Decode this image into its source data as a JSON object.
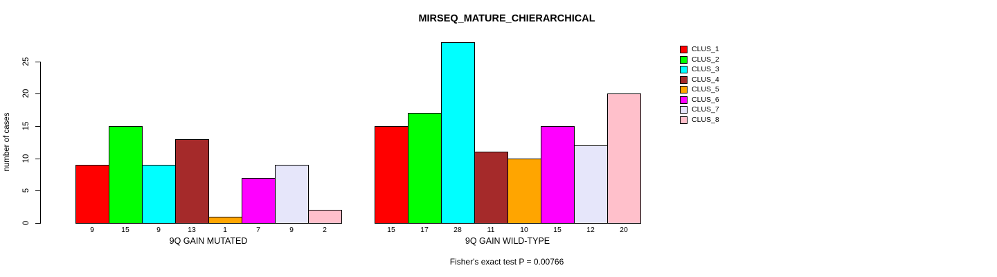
{
  "chart_data": {
    "type": "bar",
    "title": "MIRSEQ_MATURE_CHIERARCHICAL",
    "xlabel": "",
    "ylabel": "number of cases",
    "ylim": [
      0,
      28
    ],
    "yticks": [
      0,
      5,
      10,
      15,
      20,
      25
    ],
    "grid": false,
    "legend_position": "top-right",
    "series_labels": [
      "CLUS_1",
      "CLUS_2",
      "CLUS_3",
      "CLUS_4",
      "CLUS_5",
      "CLUS_6",
      "CLUS_7",
      "CLUS_8"
    ],
    "colors": [
      "#FF0000",
      "#00FF00",
      "#00FFFF",
      "#A52A2A",
      "#FFA500",
      "#FF00FF",
      "#E6E6FA",
      "#FFC0CB"
    ],
    "groups": [
      {
        "label": "9Q GAIN MUTATED",
        "values": [
          9,
          15,
          9,
          13,
          1,
          7,
          9,
          2
        ]
      },
      {
        "label": "9Q GAIN WILD-TYPE",
        "values": [
          15,
          17,
          28,
          11,
          10,
          15,
          12,
          20
        ]
      }
    ],
    "annotation": "Fisher's exact test P = 0.00766"
  }
}
